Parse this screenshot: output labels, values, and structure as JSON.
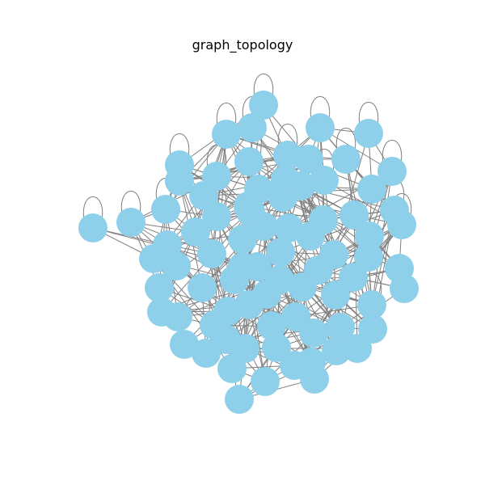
{
  "title": "graph_topology",
  "colors": {
    "node": "#8ecfea",
    "edge": "#808080",
    "background": "#ffffff"
  }
}
